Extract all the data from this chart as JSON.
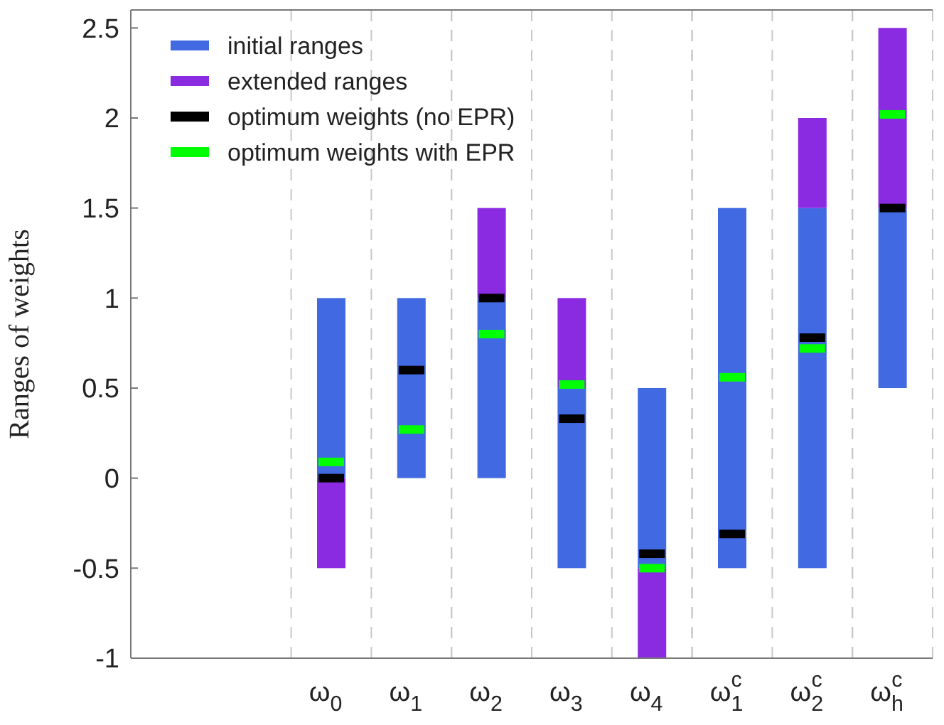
{
  "chart_data": {
    "type": "bar",
    "ylabel": "Ranges of weights",
    "categories": [
      null,
      null,
      "ω$_{0}$",
      "ω$_{1}$",
      "ω$_{2}$",
      "ω$_{3}$",
      "ω$_{4}$",
      "ω$_{1}$$^{c}$",
      "ω$_{2}$$^{c}$",
      "ω$_{h}$$^{c}$"
    ],
    "ylim": [
      -1,
      2.6
    ],
    "yticks": [
      {
        "value": -1,
        "label": "-1"
      },
      {
        "value": -0.5,
        "label": "-0.5"
      },
      0,
      0.5,
      1,
      1.5,
      2,
      2.5
    ],
    "grid": "x",
    "legend": "top left",
    "series": [
      {
        "name": "initial ranges",
        "color": "#4169e1",
        "base": [
          null,
          null,
          0,
          0,
          0,
          -0.5,
          -0.5,
          -0.5,
          -0.5,
          0.5
        ],
        "values": [
          null,
          null,
          1,
          1,
          1,
          1,
          1,
          2,
          2,
          1
        ]
      },
      {
        "name": "extended ranges",
        "color": "#8a2be2",
        "base": [
          null,
          null,
          -0.5,
          null,
          1,
          0.5,
          -1,
          null,
          1.5,
          1.5
        ],
        "values": [
          null,
          null,
          0.5,
          null,
          0.5,
          0.5,
          0.5,
          null,
          0.5,
          1
        ]
      },
      {
        "name": "optimum weights (no EPR)",
        "type": "scatter",
        "color": "#000000",
        "x": [
          "ω$_{0}$",
          "ω$_{1}$",
          "ω$_{2}$",
          "ω$_{3}$",
          "ω$_{4}$",
          "ω$_{1}$$^{c}$",
          "ω$_{2}$$^{c}$",
          "ω$_{h}$$^{c}$"
        ],
        "values": [
          0,
          0.6,
          1,
          0.33,
          -0.42,
          -0.31,
          0.78,
          1.5
        ]
      },
      {
        "name": "optimum weights with EPR",
        "type": "scatter",
        "color": "#00ff00",
        "x": [
          "ω$_{0}$",
          "ω$_{1}$",
          "ω$_{2}$",
          "ω$_{3}$",
          "ω$_{4}$",
          "ω$_{1}$$^{c}$",
          "ω$_{2}$$^{c}$",
          "ω$_{h}$$^{c}$"
        ],
        "values": [
          0.09,
          0.27,
          0.8,
          0.52,
          -0.5,
          0.56,
          0.72,
          2.02
        ]
      }
    ]
  }
}
